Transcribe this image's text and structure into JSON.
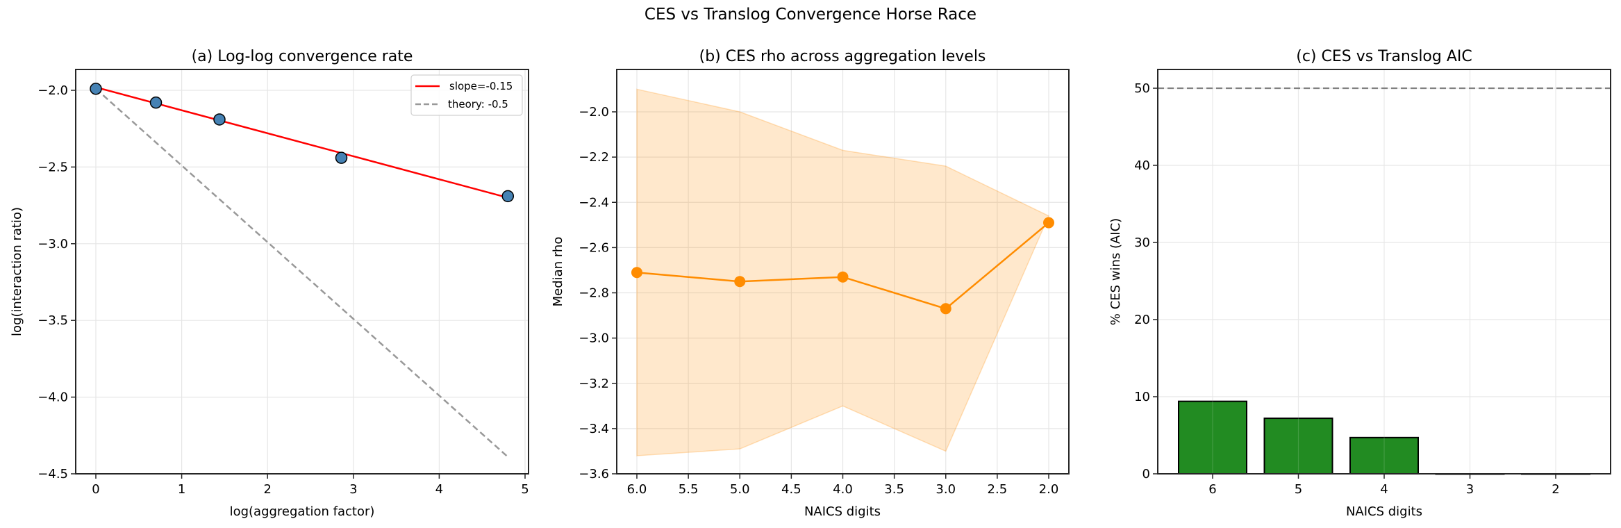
{
  "figure": {
    "suptitle": "CES vs Translog Convergence Horse Race"
  },
  "chart_data": [
    {
      "type": "line",
      "title": "(a) Log-log convergence rate",
      "xlabel": "log(aggregation factor)",
      "ylabel": "log(interaction ratio)",
      "xlim": [
        -0.23,
        5.04
      ],
      "ylim": [
        -4.5,
        -1.86
      ],
      "xticks": [
        0,
        1,
        2,
        3,
        4,
        5
      ],
      "yticks": [
        -4.5,
        -4.0,
        -3.5,
        -3.0,
        -2.5,
        -2.0
      ],
      "ytick_labels": [
        "−4.5",
        "−4.0",
        "−3.5",
        "−3.0",
        "−2.5",
        "−2.0"
      ],
      "grid": true,
      "legend_position": "upper right",
      "points": {
        "name": "observed",
        "x": [
          0.0,
          0.7,
          1.44,
          2.86,
          4.8
        ],
        "y": [
          -1.99,
          -2.08,
          -2.19,
          -2.44,
          -2.69
        ],
        "color": "#4682b4"
      },
      "series": [
        {
          "name": "slope=-0.15",
          "x": [
            0.0,
            4.8
          ],
          "y": [
            -1.98,
            -2.7
          ],
          "color": "#ff0000",
          "style": "solid"
        },
        {
          "name": "theory: -0.5",
          "x": [
            0.0,
            4.8
          ],
          "y": [
            -1.99,
            -4.39
          ],
          "color": "#999999",
          "style": "dashed"
        }
      ],
      "legend": [
        "slope=-0.15",
        "theory: -0.5"
      ]
    },
    {
      "type": "line",
      "title": "(b) CES rho across aggregation levels",
      "xlabel": "NAICS digits",
      "ylabel": "Median rho",
      "xlim": [
        6.2,
        1.78
      ],
      "ylim": [
        -3.6,
        -1.82
      ],
      "xticks": [
        6.0,
        5.5,
        5.0,
        4.5,
        4.0,
        3.5,
        3.0,
        2.5,
        2.0
      ],
      "xtick_labels": [
        "6.0",
        "5.5",
        "5.0",
        "4.5",
        "4.0",
        "3.5",
        "3.0",
        "2.5",
        "2.0"
      ],
      "yticks": [
        -3.6,
        -3.4,
        -3.2,
        -3.0,
        -2.8,
        -2.6,
        -2.4,
        -2.2,
        -2.0
      ],
      "ytick_labels": [
        "−3.6",
        "−3.4",
        "−3.2",
        "−3.0",
        "−2.8",
        "−2.6",
        "−2.4",
        "−2.2",
        "−2.0"
      ],
      "grid": true,
      "series": [
        {
          "name": "median rho",
          "x": [
            6,
            5,
            4,
            3,
            2
          ],
          "y": [
            -2.71,
            -2.75,
            -2.73,
            -2.87,
            -2.49
          ],
          "color": "#ff8c00"
        }
      ],
      "band": {
        "x": [
          6,
          5,
          4,
          3,
          2
        ],
        "upper": [
          -1.9,
          -2.0,
          -2.17,
          -2.24,
          -2.46
        ],
        "lower": [
          -3.52,
          -3.49,
          -3.3,
          -3.5,
          -2.46
        ],
        "color": "#ff8c00",
        "alpha": 0.2
      }
    },
    {
      "type": "bar",
      "title": "(c) CES vs Translog AIC",
      "xlabel": "NAICS digits",
      "ylabel": "% CES wins (AIC)",
      "categories": [
        "6",
        "5",
        "4",
        "3",
        "2"
      ],
      "values": [
        9.4,
        7.2,
        4.7,
        0.0,
        0.0
      ],
      "ylim": [
        0,
        52.5
      ],
      "yticks": [
        0,
        10,
        20,
        30,
        40,
        50
      ],
      "ytick_labels": [
        "0",
        "10",
        "20",
        "30",
        "40",
        "50"
      ],
      "grid": true,
      "bar_color": "#228b22",
      "reference_line": {
        "y": 50,
        "color": "#808080",
        "style": "dashed"
      }
    }
  ]
}
